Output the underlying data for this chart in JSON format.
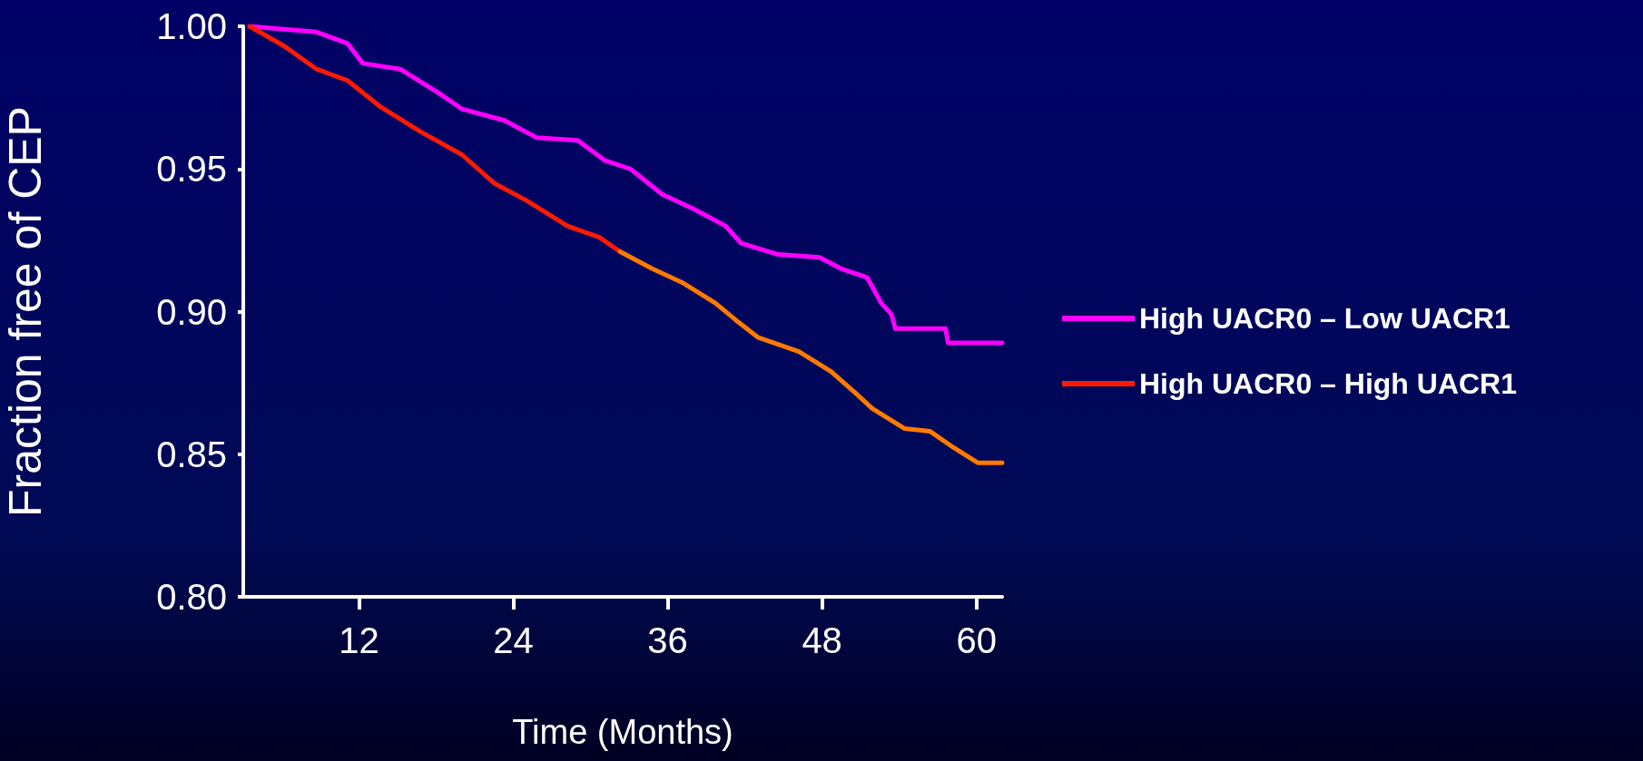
{
  "chart_data": {
    "type": "line",
    "xlabel": "Time (Months)",
    "ylabel": "Fraction free of CEP",
    "xlim": [
      3,
      62
    ],
    "xticks": [
      12,
      24,
      36,
      48,
      60
    ],
    "ylim": [
      0.8,
      1.0
    ],
    "yticks": [
      {
        "value": 0.8,
        "label": "0.80"
      },
      {
        "value": 0.85,
        "label": "0.85"
      },
      {
        "value": 0.9,
        "label": "0.90"
      },
      {
        "value": 0.95,
        "label": "0.95"
      },
      {
        "value": 1.0,
        "label": "1.00"
      }
    ],
    "grid": false,
    "legend": "right",
    "marker": "none",
    "line_style": "solid",
    "series": [
      {
        "name": "High UACR0 – Low UACR1",
        "color": "#ff00ff",
        "x": [
          3.5,
          8.7,
          11.1,
          12.3,
          15.2,
          18.4,
          20,
          23.3,
          25.8,
          29,
          31.1,
          33.1,
          35.6,
          38,
          40.5,
          41.7,
          44.6,
          47.8,
          49.5,
          51.5,
          52.6,
          53.4,
          53.7,
          57.6,
          57.8,
          62
        ],
        "values": [
          1.0,
          0.998,
          0.994,
          0.987,
          0.985,
          0.976,
          0.971,
          0.967,
          0.961,
          0.96,
          0.953,
          0.95,
          0.941,
          0.936,
          0.93,
          0.924,
          0.92,
          0.919,
          0.915,
          0.912,
          0.903,
          0.899,
          0.894,
          0.894,
          0.889,
          0.889
        ]
      },
      {
        "name": "High UACR0 – High UACR1",
        "color": "#ff1a00",
        "x": [
          3.5,
          6.2,
          8.7,
          11.1,
          13.6,
          16.8,
          20,
          22.5,
          25,
          28.2,
          30.7,
          32.3
        ],
        "values": [
          1.0,
          0.993,
          0.985,
          0.981,
          0.972,
          0.963,
          0.955,
          0.945,
          0.939,
          0.93,
          0.926,
          0.921
        ]
      },
      {
        "color": "#ff7a00",
        "x": [
          32.3,
          34.8,
          37.2,
          39.7,
          41.3,
          43,
          46.2,
          48.7,
          50.7,
          51.9,
          54.4,
          56.4,
          58,
          60.1,
          62
        ],
        "values": [
          0.921,
          0.915,
          0.91,
          0.903,
          0.897,
          0.891,
          0.886,
          0.879,
          0.871,
          0.866,
          0.859,
          0.858,
          0.853,
          0.847,
          0.847
        ]
      }
    ]
  }
}
